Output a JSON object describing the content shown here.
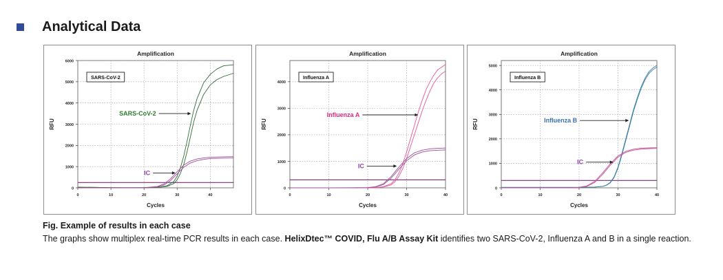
{
  "page": {
    "section_title": "Analytical Data",
    "bullet_color": "#2f4b9a",
    "caption_title": "Fig. Example of results in each case",
    "caption_pre": "The graphs show multiplex real-time PCR results in each case. ",
    "caption_bold": "HelixDtec™ COVID, Flu A/B Assay Kit",
    "caption_post": " identifies two SARS-CoV-2, Influenza A and B in a single reaction."
  },
  "chart_data": [
    {
      "type": "line",
      "title": "Amplification",
      "xlabel": "Cycles",
      "ylabel": "RFU",
      "xlim": [
        0,
        47
      ],
      "ylim": [
        0,
        6000
      ],
      "xticks": [
        0,
        10,
        20,
        30,
        40
      ],
      "yticks": [
        0,
        1000,
        2000,
        3000,
        4000,
        5000,
        6000
      ],
      "grid": true,
      "box_label": "SARS-CoV-2",
      "threshold": 250,
      "threshold_color": "#7a2a7a",
      "series": [
        {
          "name": "SARS-CoV-2",
          "label_color": "#2e7d32",
          "line_color": "#2e6b34",
          "x": [
            0,
            5,
            10,
            15,
            20,
            25,
            27,
            29,
            30,
            31,
            32,
            33,
            34,
            35,
            36,
            38,
            40,
            42,
            44,
            47
          ],
          "y": [
            30,
            20,
            10,
            5,
            10,
            40,
            100,
            300,
            550,
            950,
            1500,
            2200,
            2950,
            3650,
            4200,
            4950,
            5350,
            5600,
            5750,
            5800
          ]
        },
        {
          "name": "",
          "line_color": "#2e6b34",
          "x": [
            0,
            5,
            10,
            15,
            20,
            25,
            27,
            29,
            30,
            31,
            32,
            33,
            34,
            35,
            36,
            38,
            40,
            42,
            44,
            47
          ],
          "y": [
            30,
            20,
            10,
            5,
            10,
            30,
            70,
            200,
            380,
            680,
            1100,
            1700,
            2400,
            3100,
            3650,
            4400,
            4850,
            5100,
            5250,
            5400
          ]
        },
        {
          "name": "IC",
          "label_color": "#8e44ad",
          "line_color": "#9b4d96",
          "x": [
            0,
            10,
            20,
            24,
            26,
            28,
            30,
            32,
            34,
            36,
            38,
            40,
            44,
            47
          ],
          "y": [
            0,
            0,
            10,
            60,
            180,
            420,
            760,
            1070,
            1260,
            1360,
            1410,
            1440,
            1460,
            1470
          ]
        },
        {
          "name": "",
          "line_color": "#9b4d96",
          "x": [
            0,
            10,
            20,
            24,
            26,
            28,
            30,
            32,
            34,
            36,
            38,
            40,
            44,
            47
          ],
          "y": [
            0,
            0,
            5,
            40,
            130,
            340,
            660,
            970,
            1170,
            1280,
            1340,
            1380,
            1400,
            1410
          ]
        }
      ],
      "annotations": [
        {
          "text": "SARS-CoV-2",
          "series": 0,
          "x": 12.5,
          "y": 3500,
          "to_x": 34.2,
          "to_y": 3500
        },
        {
          "text": "IC",
          "series": 2,
          "x": 20,
          "y": 700,
          "to_x": 29.5,
          "to_y": 700
        }
      ]
    },
    {
      "type": "line",
      "title": "Amplification",
      "xlabel": "Cycles",
      "ylabel": "RFU",
      "xlim": [
        0,
        40
      ],
      "ylim": [
        0,
        4800
      ],
      "xticks": [
        0,
        10,
        20,
        30,
        40
      ],
      "yticks": [
        0,
        1000,
        2000,
        3000,
        4000
      ],
      "grid": true,
      "box_label": "Influenza A",
      "threshold": 300,
      "threshold_color": "#7a2a7a",
      "series": [
        {
          "name": "Influenza A",
          "label_color": "#e0297b",
          "line_color": "#e8569a",
          "x": [
            0,
            10,
            20,
            22,
            24,
            26,
            27,
            28,
            29,
            30,
            31,
            32,
            33,
            34,
            35,
            36,
            37,
            38,
            39,
            40
          ],
          "y": [
            0,
            0,
            0,
            10,
            40,
            150,
            300,
            550,
            900,
            1350,
            1850,
            2350,
            2850,
            3300,
            3700,
            4000,
            4250,
            4450,
            4550,
            4650
          ]
        },
        {
          "name": "",
          "line_color": "#e8569a",
          "x": [
            0,
            10,
            20,
            22,
            24,
            26,
            27,
            28,
            29,
            30,
            31,
            32,
            33,
            34,
            35,
            36,
            37,
            38,
            39,
            40
          ],
          "y": [
            0,
            0,
            0,
            5,
            30,
            110,
            230,
            430,
            720,
            1100,
            1550,
            2000,
            2450,
            2900,
            3300,
            3650,
            3950,
            4150,
            4300,
            4400
          ]
        },
        {
          "name": "IC",
          "label_color": "#8e44ad",
          "line_color": "#9b4d96",
          "x": [
            0,
            10,
            20,
            22,
            24,
            26,
            28,
            30,
            32,
            34,
            36,
            38,
            40
          ],
          "y": [
            0,
            0,
            10,
            40,
            150,
            420,
            780,
            1100,
            1320,
            1420,
            1470,
            1490,
            1500
          ]
        },
        {
          "name": "",
          "line_color": "#9b4d96",
          "x": [
            0,
            10,
            20,
            22,
            24,
            26,
            28,
            30,
            32,
            34,
            36,
            38,
            40
          ],
          "y": [
            0,
            0,
            5,
            30,
            120,
            360,
            700,
            1020,
            1240,
            1350,
            1400,
            1420,
            1430
          ]
        }
      ],
      "annotations": [
        {
          "text": "Influenza A",
          "series": 0,
          "x": 9.5,
          "y": 2750,
          "to_x": 33,
          "to_y": 2750
        },
        {
          "text": "IC",
          "series": 2,
          "x": 17.5,
          "y": 820,
          "to_x": 27.5,
          "to_y": 820
        }
      ]
    },
    {
      "type": "line",
      "title": "Amplification",
      "xlabel": "Cycles",
      "ylabel": "RFU",
      "xlim": [
        0,
        40
      ],
      "ylim": [
        0,
        5200
      ],
      "xticks": [
        0,
        10,
        20,
        30,
        40
      ],
      "yticks": [
        0,
        1000,
        2000,
        3000,
        4000,
        5000
      ],
      "grid": true,
      "box_label": "Influenza B",
      "threshold": 300,
      "threshold_color": "#7a2a7a",
      "series": [
        {
          "name": "Influenza B",
          "label_color": "#3b6fb6",
          "line_color": "#3d7fa6",
          "x": [
            0,
            10,
            20,
            24,
            26,
            27,
            28,
            29,
            30,
            31,
            32,
            33,
            34,
            35,
            36,
            37,
            38,
            39,
            40
          ],
          "y": [
            20,
            20,
            20,
            30,
            60,
            110,
            220,
            450,
            850,
            1400,
            2000,
            2600,
            3200,
            3700,
            4150,
            4500,
            4750,
            4900,
            5000
          ]
        },
        {
          "name": "",
          "line_color": "#3d7fa6",
          "x": [
            0,
            10,
            20,
            24,
            26,
            27,
            28,
            29,
            30,
            31,
            32,
            33,
            34,
            35,
            36,
            37,
            38,
            39,
            40
          ],
          "y": [
            20,
            20,
            20,
            30,
            55,
            100,
            200,
            420,
            800,
            1340,
            1930,
            2530,
            3130,
            3630,
            4080,
            4430,
            4680,
            4830,
            4930
          ]
        },
        {
          "name": "IC",
          "label_color": "#8e44ad",
          "line_color": "#c2509a",
          "x": [
            0,
            10,
            18,
            20,
            22,
            24,
            26,
            28,
            30,
            32,
            34,
            36,
            38,
            40
          ],
          "y": [
            0,
            0,
            0,
            20,
            80,
            260,
            600,
            980,
            1300,
            1490,
            1580,
            1620,
            1630,
            1640
          ]
        },
        {
          "name": "",
          "line_color": "#c2509a",
          "x": [
            0,
            10,
            18,
            20,
            22,
            24,
            26,
            28,
            30,
            32,
            34,
            36,
            38,
            40
          ],
          "y": [
            0,
            0,
            0,
            15,
            60,
            220,
            540,
            920,
            1250,
            1450,
            1540,
            1580,
            1600,
            1610
          ]
        }
      ],
      "annotations": [
        {
          "text": "Influenza B",
          "series": 0,
          "x": 11,
          "y": 2750,
          "to_x": 32.8,
          "to_y": 2750
        },
        {
          "text": "IC",
          "series": 2,
          "x": 19.5,
          "y": 1050,
          "to_x": 28.8,
          "to_y": 1050
        }
      ]
    }
  ]
}
